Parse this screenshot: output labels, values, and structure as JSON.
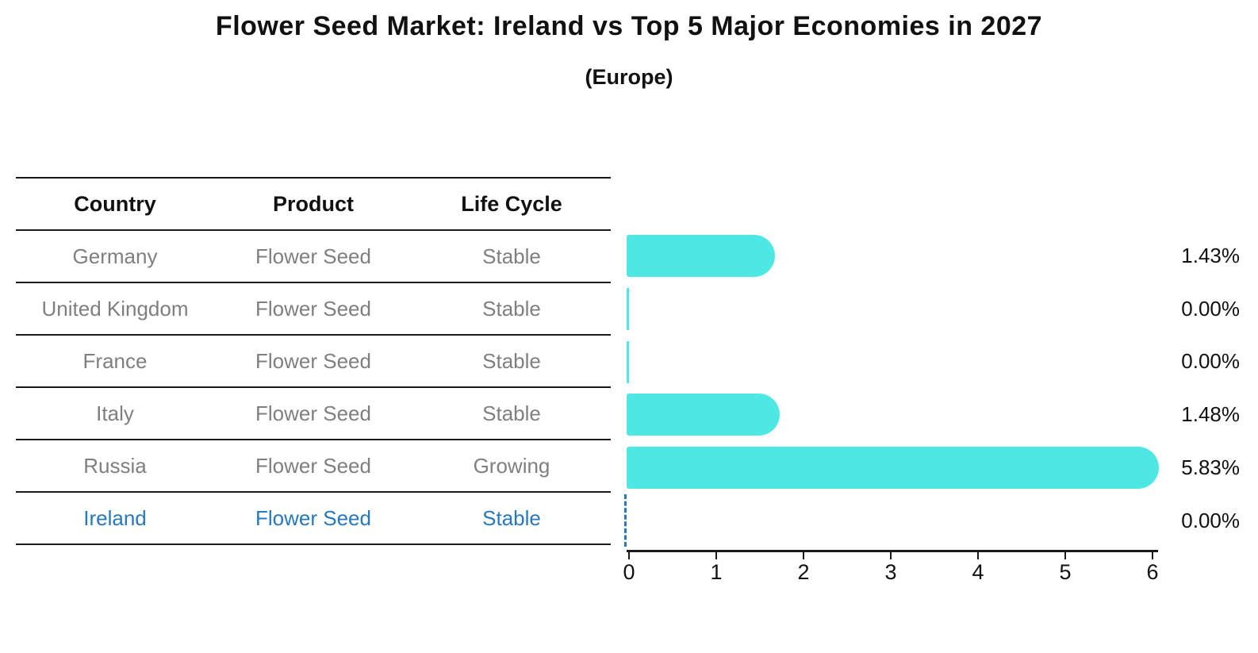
{
  "title": "Flower Seed Market: Ireland vs Top 5 Major Economies in 2027",
  "subtitle": "(Europe)",
  "colors": {
    "bar": "#4DE8E3",
    "highlight_blue": "#2878BE",
    "row_text_gray": "#7f7f7f",
    "text_black": "#111111"
  },
  "table": {
    "headers": [
      "Country",
      "Product",
      "Life Cycle"
    ],
    "rows": [
      {
        "country": "Germany",
        "product": "Flower Seed",
        "life_cycle": "Stable",
        "highlighted": false
      },
      {
        "country": "United Kingdom",
        "product": "Flower Seed",
        "life_cycle": "Stable",
        "highlighted": false
      },
      {
        "country": "France",
        "product": "Flower Seed",
        "life_cycle": "Stable",
        "highlighted": false
      },
      {
        "country": "Italy",
        "product": "Flower Seed",
        "life_cycle": "Stable",
        "highlighted": false
      },
      {
        "country": "Russia",
        "product": "Flower Seed",
        "life_cycle": "Growing",
        "highlighted": false
      },
      {
        "country": "Ireland",
        "product": "Flower Seed",
        "life_cycle": "Stable",
        "highlighted": true
      }
    ]
  },
  "chart_data": {
    "type": "bar",
    "orientation": "horizontal",
    "title": "Flower Seed Market: Ireland vs Top 5 Major Economies in 2027",
    "subtitle": "(Europe)",
    "categories": [
      "Germany",
      "United Kingdom",
      "France",
      "Italy",
      "Russia",
      "Ireland"
    ],
    "values": [
      1.43,
      0.0,
      0.0,
      1.48,
      5.83,
      0.0
    ],
    "value_labels": [
      "1.43%",
      "0.00%",
      "0.00%",
      "1.48%",
      "5.83%",
      "0.00%"
    ],
    "xlim": [
      0,
      6
    ],
    "xticks": [
      "0",
      "1",
      "2",
      "3",
      "4",
      "5",
      "6"
    ],
    "grid": false,
    "legend": false,
    "bar_color": "#4DE8E3",
    "highlight_category": "Ireland",
    "highlight_marker": "dashed blue zero line"
  }
}
